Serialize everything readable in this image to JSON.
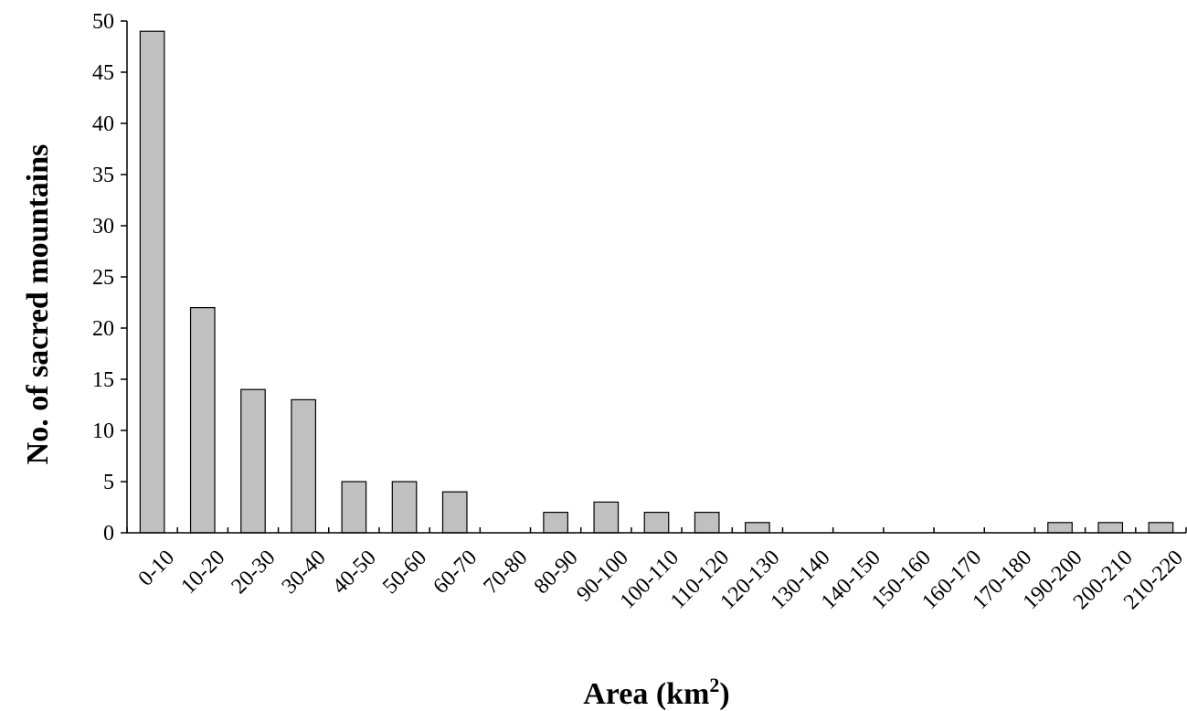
{
  "chart_data": {
    "type": "bar",
    "categories": [
      "0-10",
      "10-20",
      "20-30",
      "30-40",
      "40-50",
      "50-60",
      "60-70",
      "70-80",
      "80-90",
      "90-100",
      "100-110",
      "110-120",
      "120-130",
      "130-140",
      "140-150",
      "150-160",
      "160-170",
      "170-180",
      "190-200",
      "200-210",
      "210-220"
    ],
    "values": [
      49,
      22,
      14,
      13,
      5,
      5,
      4,
      0,
      2,
      3,
      2,
      2,
      1,
      0,
      0,
      0,
      0,
      0,
      1,
      1,
      1
    ],
    "title": "",
    "xlabel": "Area (km",
    "xlabel_superscript": "2",
    "xlabel_suffix": ")",
    "ylabel": "No. of sacred mountains",
    "ylim": [
      0,
      50
    ],
    "yticks": [
      0,
      5,
      10,
      15,
      20,
      25,
      30,
      35,
      40,
      45,
      50
    ],
    "grid": false,
    "legend": "none",
    "colors": {
      "bar_fill": "#c0c0c0",
      "bar_stroke": "#000000",
      "axis": "#000000",
      "background": "#ffffff"
    }
  }
}
